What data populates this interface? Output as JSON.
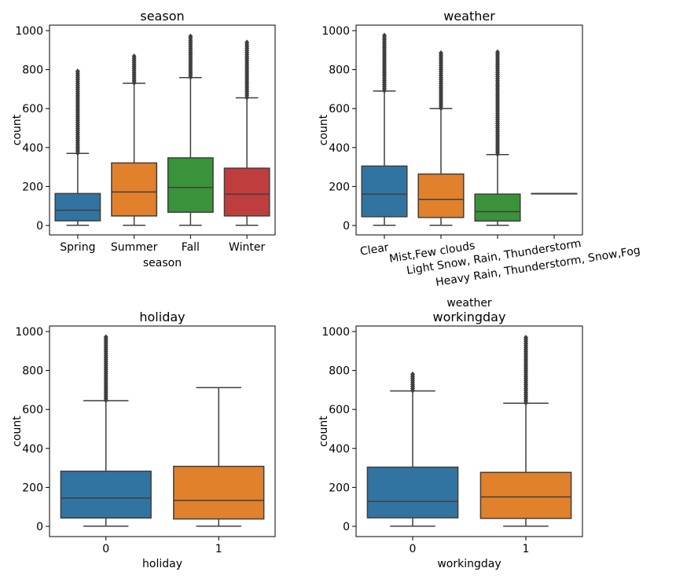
{
  "chart_data": [
    {
      "type": "box",
      "title": "season",
      "xlabel": "season",
      "ylabel": "count",
      "ylim": [
        -50,
        1030
      ],
      "yticks": [
        0,
        200,
        400,
        600,
        800,
        1000
      ],
      "categories": [
        "Spring",
        "Summer",
        "Fall",
        "Winter"
      ],
      "boxes": [
        {
          "category": "Spring",
          "min": 1,
          "q1": 24,
          "median": 78,
          "q3": 164,
          "max": 370,
          "outlier_min": 372,
          "outlier_max": 801,
          "color": "#3274a1"
        },
        {
          "category": "Summer",
          "min": 1,
          "q1": 49,
          "median": 172,
          "q3": 321,
          "max": 730,
          "outlier_min": 732,
          "outlier_max": 873,
          "color": "#e1812c"
        },
        {
          "category": "Fall",
          "min": 1,
          "q1": 68,
          "median": 195,
          "q3": 347,
          "max": 759,
          "outlier_min": 761,
          "outlier_max": 977,
          "color": "#3a923a"
        },
        {
          "category": "Winter",
          "min": 1,
          "q1": 49,
          "median": 161,
          "q3": 294,
          "max": 655,
          "outlier_min": 657,
          "outlier_max": 948,
          "color": "#c03d3e"
        }
      ]
    },
    {
      "type": "box",
      "title": "weather",
      "xlabel": "weather",
      "ylabel": "count",
      "ylim": [
        -50,
        1030
      ],
      "yticks": [
        0,
        200,
        400,
        600,
        800,
        1000
      ],
      "categories": [
        "Clear",
        "Mist,Few clouds",
        "Light Snow, Rain, Thunderstorm",
        "Heavy Rain, Thunderstorm, Snow,Fog"
      ],
      "boxes": [
        {
          "category": "Clear",
          "min": 1,
          "q1": 45,
          "median": 161,
          "q3": 305,
          "max": 690,
          "outlier_min": 692,
          "outlier_max": 977,
          "color": "#3274a1"
        },
        {
          "category": "Mist,Few clouds",
          "min": 1,
          "q1": 41,
          "median": 134,
          "q3": 264,
          "max": 600,
          "outlier_min": 602,
          "outlier_max": 890,
          "color": "#e1812c"
        },
        {
          "category": "Light Snow, Rain, Thunderstorm",
          "min": 1,
          "q1": 23,
          "median": 71,
          "q3": 161,
          "max": 364,
          "outlier_min": 366,
          "outlier_max": 891,
          "color": "#3a923a"
        },
        {
          "category": "Heavy Rain, Thunderstorm, Snow,Fog",
          "min": 164,
          "q1": 164,
          "median": 164,
          "q3": 164,
          "max": 164,
          "outlier_min": null,
          "outlier_max": null,
          "color": "#c03d3e"
        }
      ]
    },
    {
      "type": "box",
      "title": "holiday",
      "xlabel": "holiday",
      "ylabel": "count",
      "ylim": [
        -50,
        1030
      ],
      "yticks": [
        0,
        200,
        400,
        600,
        800,
        1000
      ],
      "categories": [
        "0",
        "1"
      ],
      "boxes": [
        {
          "category": "0",
          "min": 1,
          "q1": 43,
          "median": 145,
          "q3": 283,
          "max": 645,
          "outlier_min": 647,
          "outlier_max": 977,
          "color": "#3274a1"
        },
        {
          "category": "1",
          "min": 1,
          "q1": 38,
          "median": 133,
          "q3": 308,
          "max": 712,
          "outlier_min": null,
          "outlier_max": null,
          "color": "#e1812c"
        }
      ]
    },
    {
      "type": "box",
      "title": "workingday",
      "xlabel": "workingday",
      "ylabel": "count",
      "ylim": [
        -50,
        1030
      ],
      "yticks": [
        0,
        200,
        400,
        600,
        800,
        1000
      ],
      "categories": [
        "0",
        "1"
      ],
      "boxes": [
        {
          "category": "0",
          "min": 1,
          "q1": 44,
          "median": 128,
          "q3": 304,
          "max": 695,
          "outlier_min": 697,
          "outlier_max": 783,
          "color": "#3274a1"
        },
        {
          "category": "1",
          "min": 1,
          "q1": 41,
          "median": 151,
          "q3": 277,
          "max": 632,
          "outlier_min": 634,
          "outlier_max": 977,
          "color": "#e1812c"
        }
      ]
    }
  ]
}
